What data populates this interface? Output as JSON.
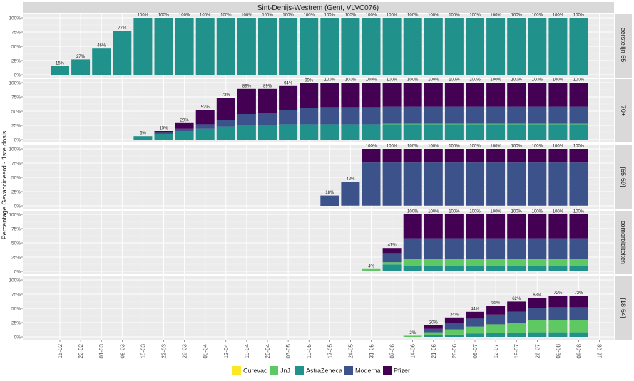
{
  "chart_data": {
    "type": "bar",
    "stacked": true,
    "faceted": true,
    "title": "Sint-Denijs-Westrem (Gent, VLVC076)",
    "ylabel": "Percentage Gevaccineerd - 1ste dosis",
    "xlabel": "",
    "ylim": [
      0,
      100
    ],
    "y_ticks": [
      "0%",
      "25%",
      "50%",
      "75%",
      "100%"
    ],
    "categories": [
      "15-02",
      "22-02",
      "01-03",
      "08-03",
      "15-03",
      "22-03",
      "29-03",
      "05-04",
      "12-04",
      "19-04",
      "26-04",
      "03-05",
      "10-05",
      "17-05",
      "24-05",
      "31-05",
      "07-06",
      "14-06",
      "21-06",
      "28-06",
      "05-07",
      "12-07",
      "19-07",
      "26-07",
      "02-08",
      "09-08",
      "16-08"
    ],
    "legend": {
      "position": "bottom",
      "entries": [
        {
          "name": "Curevac",
          "color": "#FDE725"
        },
        {
          "name": "JnJ",
          "color": "#5EC962"
        },
        {
          "name": "AstraZeneca",
          "color": "#21918C"
        },
        {
          "name": "Moderna",
          "color": "#3B528B"
        },
        {
          "name": "Pfizer",
          "color": "#440154"
        }
      ]
    },
    "panels": [
      {
        "label": "eerstelijn 55-",
        "series": [
          {
            "name": "AstraZeneca",
            "values": [
              15,
              27,
              46,
              77,
              100,
              100,
              100,
              100,
              100,
              100,
              100,
              100,
              100,
              100,
              100,
              100,
              100,
              100,
              100,
              100,
              100,
              100,
              100,
              100,
              100,
              100,
              null
            ]
          }
        ],
        "labels": [
          "15%",
          "27%",
          "46%",
          "77%",
          "100%",
          "100%",
          "100%",
          "100%",
          "100%",
          "100%",
          "100%",
          "100%",
          "100%",
          "100%",
          "100%",
          "100%",
          "100%",
          "100%",
          "100%",
          "100%",
          "100%",
          "100%",
          "100%",
          "100%",
          "100%",
          "100%",
          ""
        ]
      },
      {
        "label": "70+",
        "series": [
          {
            "name": "AstraZeneca",
            "values": [
              null,
              null,
              null,
              null,
              6,
              10,
              15,
              19,
              23,
              26,
              26,
              27,
              27,
              27,
              27,
              27,
              27,
              27,
              27,
              27,
              27,
              27,
              27,
              27,
              27,
              27,
              null
            ]
          },
          {
            "name": "JnJ",
            "values": [
              null,
              null,
              null,
              null,
              0,
              0,
              0,
              0,
              0,
              0,
              0,
              0,
              0,
              0,
              0,
              0,
              1,
              1,
              1,
              1,
              1,
              1,
              1,
              1,
              1,
              1,
              null
            ]
          },
          {
            "name": "Moderna",
            "values": [
              null,
              null,
              null,
              null,
              0,
              2,
              4,
              8,
              11,
              19,
              21,
              25,
              29,
              30,
              30,
              30,
              30,
              30,
              30,
              30,
              30,
              30,
              30,
              30,
              30,
              30,
              null
            ]
          },
          {
            "name": "Pfizer",
            "values": [
              null,
              null,
              null,
              null,
              0,
              3,
              10,
              25,
              39,
              44,
              42,
              42,
              43,
              43,
              43,
              43,
              42,
              42,
              42,
              42,
              42,
              42,
              42,
              42,
              42,
              42,
              null
            ]
          }
        ],
        "labels": [
          "",
          "",
          "",
          "",
          "6%",
          "15%",
          "29%",
          "52%",
          "73%",
          "89%",
          "89%",
          "94%",
          "99%",
          "100%",
          "100%",
          "100%",
          "100%",
          "100%",
          "100%",
          "100%",
          "100%",
          "100%",
          "100%",
          "100%",
          "100%",
          "100%",
          ""
        ]
      },
      {
        "label": "[65-69]",
        "series": [
          {
            "name": "AstraZeneca",
            "values": [
              null,
              null,
              null,
              null,
              null,
              null,
              null,
              null,
              null,
              null,
              null,
              null,
              null,
              0,
              1,
              1,
              1,
              1,
              1,
              1,
              1,
              1,
              1,
              1,
              1,
              1,
              null
            ]
          },
          {
            "name": "Moderna",
            "values": [
              null,
              null,
              null,
              null,
              null,
              null,
              null,
              null,
              null,
              null,
              null,
              null,
              null,
              18,
              41,
              75,
              75,
              75,
              75,
              75,
              75,
              75,
              75,
              75,
              75,
              75,
              null
            ]
          },
          {
            "name": "Pfizer",
            "values": [
              null,
              null,
              null,
              null,
              null,
              null,
              null,
              null,
              null,
              null,
              null,
              null,
              null,
              0,
              0,
              24,
              24,
              24,
              24,
              24,
              24,
              24,
              24,
              24,
              24,
              24,
              null
            ]
          }
        ],
        "labels": [
          "",
          "",
          "",
          "",
          "",
          "",
          "",
          "",
          "",
          "",
          "",
          "",
          "",
          "18%",
          "42%",
          "100%",
          "100%",
          "100%",
          "100%",
          "100%",
          "100%",
          "100%",
          "100%",
          "100%",
          "100%",
          "100%",
          ""
        ]
      },
      {
        "label": "comorbiditeiten",
        "series": [
          {
            "name": "AstraZeneca",
            "values": [
              null,
              null,
              null,
              null,
              null,
              null,
              null,
              null,
              null,
              null,
              null,
              null,
              null,
              null,
              null,
              0,
              12,
              10,
              10,
              10,
              10,
              10,
              10,
              10,
              10,
              10,
              null
            ]
          },
          {
            "name": "JnJ",
            "values": [
              null,
              null,
              null,
              null,
              null,
              null,
              null,
              null,
              null,
              null,
              null,
              null,
              null,
              null,
              null,
              4,
              4,
              12,
              12,
              12,
              12,
              12,
              12,
              12,
              12,
              12,
              null
            ]
          },
          {
            "name": "Moderna",
            "values": [
              null,
              null,
              null,
              null,
              null,
              null,
              null,
              null,
              null,
              null,
              null,
              null,
              null,
              null,
              null,
              0,
              16,
              36,
              36,
              36,
              36,
              36,
              36,
              36,
              36,
              36,
              null
            ]
          },
          {
            "name": "Pfizer",
            "values": [
              null,
              null,
              null,
              null,
              null,
              null,
              null,
              null,
              null,
              null,
              null,
              null,
              null,
              null,
              null,
              0,
              9,
              42,
              42,
              42,
              42,
              42,
              42,
              42,
              42,
              42,
              null
            ]
          }
        ],
        "labels": [
          "",
          "",
          "",
          "",
          "",
          "",
          "",
          "",
          "",
          "",
          "",
          "",
          "",
          "",
          "",
          "4%",
          "41%",
          "100%",
          "100%",
          "100%",
          "100%",
          "100%",
          "100%",
          "100%",
          "100%",
          "100%",
          ""
        ]
      },
      {
        "label": "[18-64]",
        "series": [
          {
            "name": "AstraZeneca",
            "values": [
              null,
              null,
              null,
              null,
              null,
              null,
              null,
              null,
              null,
              null,
              null,
              null,
              null,
              null,
              null,
              null,
              null,
              0,
              3,
              4,
              6,
              7,
              7,
              8,
              8,
              8,
              null
            ]
          },
          {
            "name": "JnJ",
            "values": [
              null,
              null,
              null,
              null,
              null,
              null,
              null,
              null,
              null,
              null,
              null,
              null,
              null,
              null,
              null,
              null,
              null,
              2,
              5,
              9,
              12,
              15,
              17,
              22,
              22,
              22,
              null
            ]
          },
          {
            "name": "Moderna",
            "values": [
              null,
              null,
              null,
              null,
              null,
              null,
              null,
              null,
              null,
              null,
              null,
              null,
              null,
              null,
              null,
              null,
              null,
              0,
              6,
              11,
              14,
              17,
              20,
              21,
              22,
              22,
              null
            ]
          },
          {
            "name": "Pfizer",
            "values": [
              null,
              null,
              null,
              null,
              null,
              null,
              null,
              null,
              null,
              null,
              null,
              null,
              null,
              null,
              null,
              null,
              null,
              0,
              6,
              10,
              12,
              16,
              18,
              17,
              20,
              20,
              null
            ]
          }
        ],
        "labels": [
          "",
          "",
          "",
          "",
          "",
          "",
          "",
          "",
          "",
          "",
          "",
          "",
          "",
          "",
          "",
          "",
          "",
          "2%",
          "20%",
          "34%",
          "44%",
          "55%",
          "62%",
          "68%",
          "72%",
          "72%",
          ""
        ]
      }
    ]
  }
}
